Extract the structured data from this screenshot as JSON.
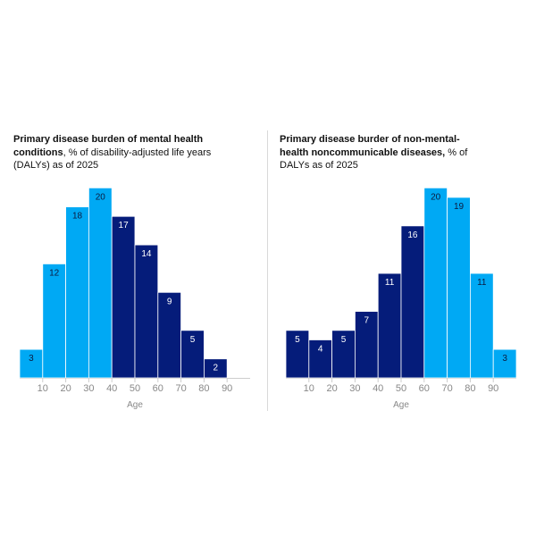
{
  "colors": {
    "light_blue": "#00A9F4",
    "dark_blue": "#051C7A",
    "axis": "#cccccc",
    "tick_text": "#888888"
  },
  "chart_data": [
    {
      "type": "bar",
      "title_bold": "Primary disease burden of mental health conditions",
      "title_rest": ", % of disability-adjusted life years (DALYs) as of 2025",
      "xlabel": "Age",
      "ylabel": "",
      "bin_edges": [
        0,
        10,
        20,
        30,
        40,
        50,
        60,
        70,
        80,
        90,
        100
      ],
      "values": [
        3,
        12,
        18,
        20,
        17,
        14,
        9,
        5,
        2,
        0
      ],
      "value_labels": [
        "3",
        "12",
        "18",
        "20",
        "17",
        "14",
        "9",
        "5",
        "2",
        ""
      ],
      "bar_colors": [
        "light",
        "light",
        "light",
        "light",
        "dark",
        "dark",
        "dark",
        "dark",
        "dark",
        "dark"
      ],
      "tick_labels": [
        "10",
        "20",
        "30",
        "40",
        "50",
        "60",
        "70",
        "80",
        "90"
      ],
      "ylim": [
        0,
        20.5
      ]
    },
    {
      "type": "bar",
      "title_bold": "Primary disease burder of non-mental-health noncommunicable diseases,",
      "title_rest": " % of DALYs as of 2025",
      "xlabel": "Age",
      "ylabel": "",
      "bin_edges": [
        0,
        10,
        20,
        30,
        40,
        50,
        60,
        70,
        80,
        90,
        100
      ],
      "values": [
        5,
        4,
        5,
        7,
        11,
        16,
        20,
        19,
        11,
        3
      ],
      "value_labels": [
        "5",
        "4",
        "5",
        "7",
        "11",
        "16",
        "20",
        "19",
        "11",
        "3"
      ],
      "bar_colors": [
        "dark",
        "dark",
        "dark",
        "dark",
        "dark",
        "dark",
        "light",
        "light",
        "light",
        "light"
      ],
      "tick_labels": [
        "10",
        "20",
        "30",
        "40",
        "50",
        "60",
        "70",
        "80",
        "90"
      ],
      "ylim": [
        0,
        20.5
      ]
    }
  ]
}
